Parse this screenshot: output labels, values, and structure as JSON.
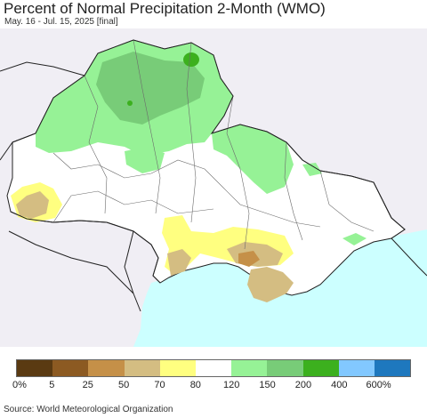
{
  "header": {
    "title": "Percent of Normal Precipitation 2-Month (WMO)",
    "subtitle": "May. 16 - Jul. 15, 2025 [final]"
  },
  "map": {
    "colors": {
      "outside": "#f0eef4",
      "sea": "#ccffff",
      "border": "#222222",
      "oblast_border": "#6b6b6b"
    }
  },
  "legend": {
    "swatches": [
      {
        "color": "#5a3a12"
      },
      {
        "color": "#8c5a22"
      },
      {
        "color": "#c59048"
      },
      {
        "color": "#d4bd82"
      },
      {
        "color": "#ffff80"
      },
      {
        "color": "#ffffff"
      },
      {
        "color": "#96f296"
      },
      {
        "color": "#78cc78"
      },
      {
        "color": "#3cb01e"
      },
      {
        "color": "#82c8ff"
      },
      {
        "color": "#1e78be"
      }
    ],
    "labels": [
      "0%",
      "5",
      "25",
      "50",
      "70",
      "80",
      "120",
      "150",
      "200",
      "400",
      "600%"
    ]
  },
  "footer": {
    "source": "Source: World Meteorological Organization"
  }
}
